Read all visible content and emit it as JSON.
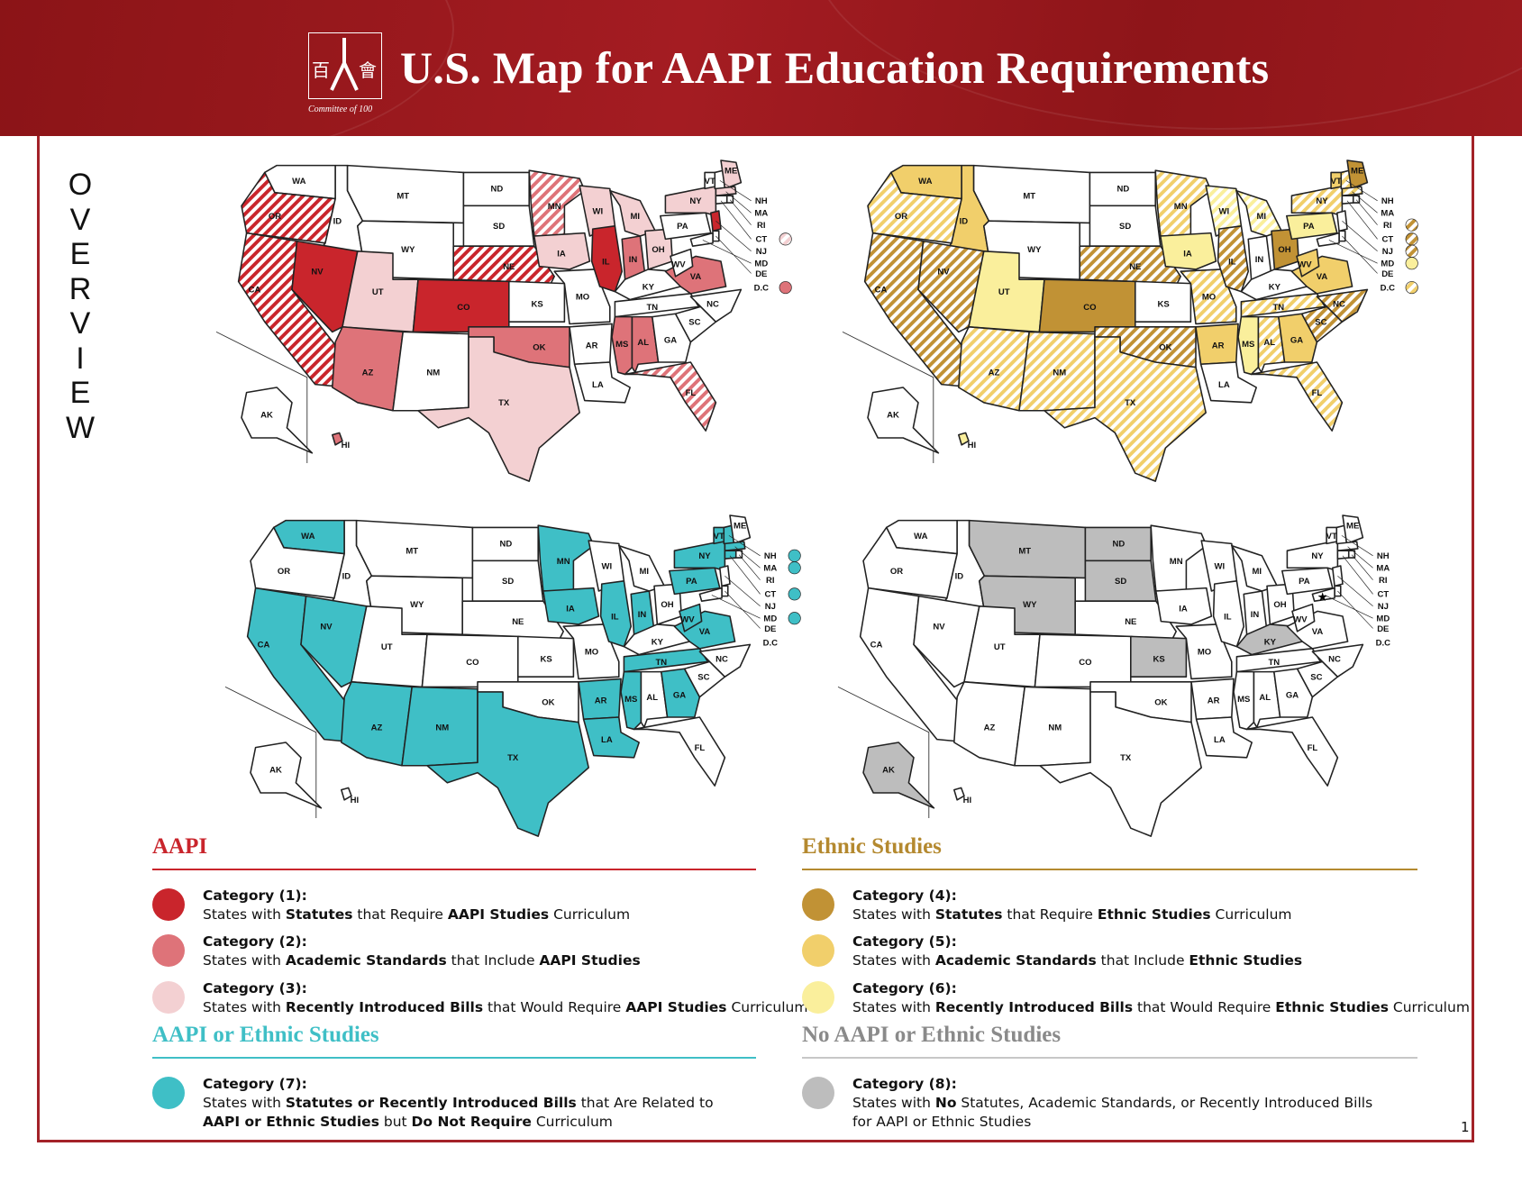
{
  "header": {
    "title": "U.S. Map for AAPI Education Requirements",
    "logo_chars": [
      "百",
      "會"
    ],
    "logo_tagline": "Committee of 100",
    "background_color": "#97181c"
  },
  "side_label": [
    "O",
    "V",
    "E",
    "R",
    "V",
    "I",
    "E",
    "W"
  ],
  "colors": {
    "cat1": "#c9252c",
    "cat2": "#de7379",
    "cat3": "#f3d0d2",
    "cat4": "#c19235",
    "cat5": "#f1cf6b",
    "cat6": "#faef9c",
    "cat7": "#3fbfc6",
    "cat8": "#bdbdbd",
    "aapi_accent": "#c9252c",
    "ethnic_accent": "#b4892f",
    "aapi_or_ethnic_accent": "#3fbfc6",
    "none_accent": "#8a8a8a"
  },
  "state_labels": [
    "WA",
    "OR",
    "CA",
    "ID",
    "NV",
    "MT",
    "WY",
    "UT",
    "AZ",
    "CO",
    "NM",
    "ND",
    "SD",
    "NE",
    "KS",
    "OK",
    "TX",
    "MN",
    "IA",
    "MO",
    "AR",
    "LA",
    "WI",
    "IL",
    "MI",
    "IN",
    "OH",
    "KY",
    "TN",
    "MS",
    "AL",
    "GA",
    "FL",
    "SC",
    "NC",
    "VA",
    "WV",
    "PA",
    "NY",
    "VT",
    "NH",
    "ME",
    "MA",
    "RI",
    "CT",
    "NJ",
    "DE",
    "MD",
    "D.C",
    "AK",
    "HI"
  ],
  "maps": {
    "aapi": {
      "states": {
        "CA": "cat1s",
        "OR": "cat1s",
        "NV": "cat1",
        "CO": "cat1",
        "IL": "cat1",
        "NJ": "cat1",
        "AZ": "cat2",
        "OK": "cat2",
        "MS": "cat2",
        "AL": "cat2",
        "VA": "cat2",
        "IN": "cat2",
        "MI": "cat3",
        "WI": "cat3",
        "MN": "cat2s",
        "NE": "cat1s",
        "FL": "cat2s",
        "ME": "cat3",
        "NY": "cat3",
        "MA": "cat3",
        "UT": "cat3",
        "TX": "cat3",
        "IA": "cat3",
        "OH": "cat3",
        "HI": "cat2"
      },
      "callout_dots": {
        "CT": "cat3s",
        "D.C": "cat2"
      }
    },
    "ethnic": {
      "states": {
        "WA": "cat5",
        "OR": "cat5s",
        "CA": "cat4s",
        "ID": "cat5",
        "NV": "cat4s",
        "UT": "cat6",
        "CO": "cat4",
        "AZ": "cat5s",
        "NM": "cat5s",
        "NE": "cat4s",
        "OK": "cat4s",
        "TX": "cat5s",
        "MN": "cat5s",
        "IA": "cat6",
        "MO": "cat5s",
        "AR": "cat5",
        "WI": "cat6s",
        "IL": "cat4s",
        "MI": "cat6s",
        "OH": "cat4",
        "MS": "cat6",
        "AL": "cat5s",
        "GA": "cat5",
        "FL": "cat5s",
        "SC": "cat4s",
        "NC": "cat4s",
        "TN": "cat5s",
        "VA": "cat5",
        "WV": "cat5",
        "PA": "cat6",
        "NY": "cat5s",
        "VT": "cat5",
        "NH": "cat5s",
        "ME": "cat4",
        "MA": "cat5s",
        "HI": "cat6"
      },
      "callout_dots": {
        "RI": "cat4s",
        "CT": "cat4s",
        "NJ": "cat4s",
        "MD": "cat6",
        "D.C": "cat5s"
      }
    },
    "aapi_or_ethnic": {
      "states": {
        "WA": "cat7",
        "CA": "cat7",
        "NV": "cat7",
        "AZ": "cat7",
        "NM": "cat7",
        "TX": "cat7",
        "MN": "cat7",
        "IA": "cat7",
        "AR": "cat7",
        "LA": "cat7",
        "IL": "cat7",
        "IN": "cat7",
        "TN": "cat7",
        "MS": "cat7",
        "GA": "cat7",
        "WV": "cat7",
        "VA": "cat7",
        "PA": "cat7",
        "NY": "cat7",
        "VT": "cat7",
        "NH": "cat7",
        "MA": "cat7",
        "CT": "cat7"
      },
      "callout_dots": {
        "NH": "cat7",
        "MA": "cat7",
        "CT": "cat7",
        "MD": "cat7"
      }
    },
    "none": {
      "states": {
        "MT": "cat8",
        "ND": "cat8",
        "SD": "cat8",
        "WY": "cat8",
        "KS": "cat8",
        "KY": "cat8",
        "AK": "cat8"
      },
      "callout_dots": {}
    }
  },
  "legend": {
    "aapi": {
      "title": "AAPI",
      "items": [
        {
          "category": "Category (1):",
          "parts": [
            [
              "States with ",
              false
            ],
            [
              "Statutes",
              true
            ],
            [
              " that Require ",
              false
            ],
            [
              "AAPI Studies",
              true
            ],
            [
              " Curriculum",
              false
            ]
          ]
        },
        {
          "category": "Category (2):",
          "parts": [
            [
              "States with ",
              false
            ],
            [
              "Academic Standards",
              true
            ],
            [
              " that Include ",
              false
            ],
            [
              "AAPI Studies",
              true
            ]
          ]
        },
        {
          "category": "Category (3):",
          "parts": [
            [
              "States with ",
              false
            ],
            [
              "Recently Introduced Bills",
              true
            ],
            [
              " that Would Require ",
              false
            ],
            [
              "AAPI Studies",
              true
            ],
            [
              " Curriculum",
              false
            ]
          ]
        }
      ]
    },
    "ethnic": {
      "title": "Ethnic Studies",
      "items": [
        {
          "category": "Category (4):",
          "parts": [
            [
              "States with ",
              false
            ],
            [
              "Statutes",
              true
            ],
            [
              " that Require ",
              false
            ],
            [
              "Ethnic Studies",
              true
            ],
            [
              " Curriculum",
              false
            ]
          ]
        },
        {
          "category": "Category (5):",
          "parts": [
            [
              "States with ",
              false
            ],
            [
              "Academic Standards",
              true
            ],
            [
              " that Include ",
              false
            ],
            [
              "Ethnic Studies",
              true
            ]
          ]
        },
        {
          "category": "Category (6):",
          "parts": [
            [
              "States with ",
              false
            ],
            [
              "Recently Introduced Bills",
              true
            ],
            [
              " that Would Require ",
              false
            ],
            [
              "Ethnic Studies",
              true
            ],
            [
              " Curriculum",
              false
            ]
          ]
        }
      ]
    },
    "aapi_or_ethnic": {
      "title": "AAPI or Ethnic Studies",
      "items": [
        {
          "category": "Category (7):",
          "parts": [
            [
              "States with ",
              false
            ],
            [
              "Statutes or Recently Introduced Bills",
              true
            ],
            [
              " that Are Related to",
              false
            ],
            [
              "\n",
              false
            ],
            [
              "AAPI or Ethnic Studies",
              true
            ],
            [
              " but ",
              false
            ],
            [
              "Do Not Require",
              true
            ],
            [
              " Curriculum",
              false
            ]
          ]
        }
      ]
    },
    "none": {
      "title": "No AAPI or Ethnic Studies",
      "items": [
        {
          "category": "Category (8):",
          "parts": [
            [
              "States with ",
              false
            ],
            [
              "No",
              true
            ],
            [
              " Statutes, Academic Standards, or Recently Introduced Bills",
              false
            ],
            [
              "\n",
              false
            ],
            [
              "for AAPI or Ethnic Studies",
              false
            ]
          ]
        }
      ]
    }
  },
  "page_number": "1"
}
